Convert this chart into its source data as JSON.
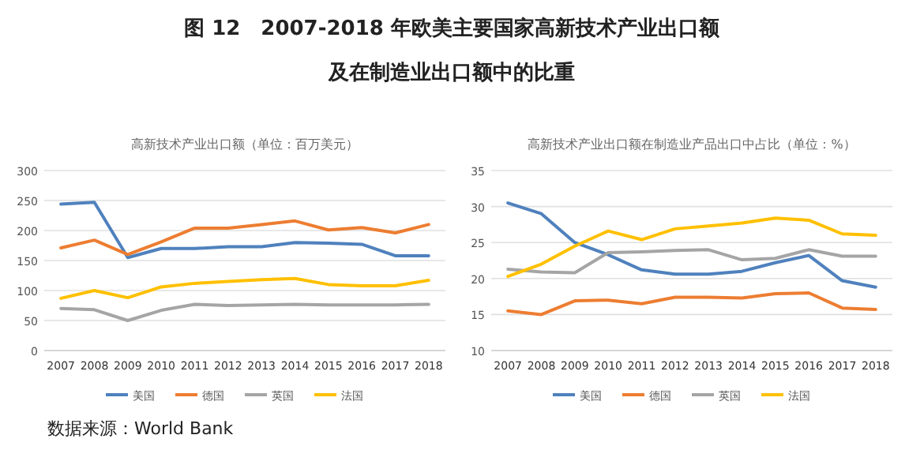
{
  "chart_data": [
    {
      "type": "other",
      "title": "图 12　2007-2018 年欧美主要国家高新技术产业出口额",
      "subtitle": "及在制造业出口额中的比重"
    },
    {
      "type": "line",
      "title": "高新技术产业出口额（单位：百万美元）",
      "categories": [
        "2007",
        "2008",
        "2009",
        "2010",
        "2011",
        "2012",
        "2013",
        "2014",
        "2015",
        "2016",
        "2017",
        "2018"
      ],
      "ylim": [
        0,
        300
      ],
      "yticks": [
        0,
        50,
        100,
        150,
        200,
        250,
        300
      ],
      "grid": "y",
      "legend": "bottom",
      "marker": "none",
      "line_style": "solid",
      "series": [
        {
          "name": "美国",
          "color": "#4f81bd",
          "values": [
            244,
            247,
            155,
            170,
            170,
            173,
            173,
            180,
            179,
            177,
            158,
            158
          ]
        },
        {
          "name": "德国",
          "color": "#ed7d31",
          "values": [
            171,
            184,
            160,
            181,
            204,
            204,
            210,
            216,
            201,
            205,
            196,
            210
          ]
        },
        {
          "name": "英国",
          "color": "#a5a5a5",
          "values": [
            70,
            68,
            50,
            67,
            77,
            75,
            76,
            77,
            76,
            76,
            76,
            77
          ]
        },
        {
          "name": "法国",
          "color": "#ffc000",
          "values": [
            87,
            100,
            88,
            106,
            112,
            115,
            118,
            120,
            110,
            108,
            108,
            117
          ]
        }
      ]
    },
    {
      "type": "line",
      "title": "高新技术产业出口额在制造业产品出口中占比（单位：%）",
      "categories": [
        "2007",
        "2008",
        "2009",
        "2010",
        "2011",
        "2012",
        "2013",
        "2014",
        "2015",
        "2016",
        "2017",
        "2018"
      ],
      "ylim": [
        10,
        35
      ],
      "yticks": [
        10,
        15,
        20,
        25,
        30,
        35
      ],
      "grid": "y",
      "legend": "bottom",
      "marker": "none",
      "line_style": "solid",
      "series": [
        {
          "name": "美国",
          "color": "#4f81bd",
          "values": [
            30.5,
            29,
            25,
            23.3,
            21.2,
            20.6,
            20.6,
            21,
            22.2,
            23.2,
            19.7,
            18.8
          ]
        },
        {
          "name": "德国",
          "color": "#ed7d31",
          "values": [
            15.5,
            15,
            16.9,
            17,
            16.5,
            17.4,
            17.4,
            17.3,
            17.9,
            18,
            15.9,
            15.7
          ]
        },
        {
          "name": "英国",
          "color": "#a5a5a5",
          "values": [
            21.3,
            20.9,
            20.8,
            23.6,
            23.7,
            23.9,
            24,
            22.6,
            22.8,
            24,
            23.1,
            23.1
          ]
        },
        {
          "name": "法国",
          "color": "#ffc000",
          "values": [
            20.3,
            22,
            24.5,
            26.6,
            25.4,
            26.9,
            27.3,
            27.7,
            28.4,
            28.1,
            26.2,
            26
          ]
        }
      ]
    },
    {
      "type": "other",
      "annotations": [
        "数据来源：World Bank"
      ]
    }
  ]
}
